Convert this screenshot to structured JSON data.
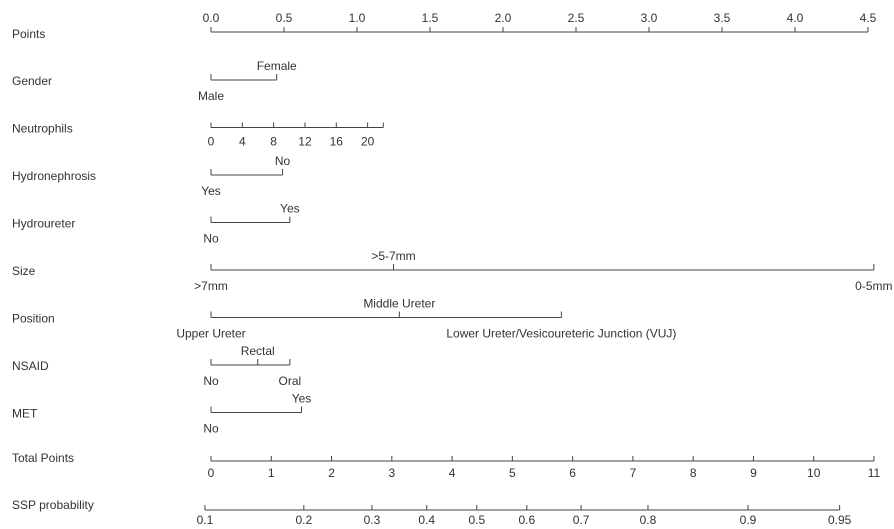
{
  "chart_data": {
    "type": "nomogram",
    "points_axis": {
      "name": "Points",
      "lim": [
        0,
        4.5
      ],
      "ticks": [
        {
          "value": 0,
          "label": "0.0"
        },
        0.5,
        {
          "value": 1,
          "label": "1.0"
        },
        1.5,
        {
          "value": 2,
          "label": "2.0"
        },
        2.5,
        {
          "value": 3,
          "label": "3.0"
        },
        3.5,
        {
          "value": 4,
          "label": "4.0"
        },
        4.5
      ]
    },
    "variables": [
      {
        "name": "Gender",
        "items": [
          {
            "label": "Male",
            "points": 0
          },
          {
            "label": "Female",
            "points": 0.45
          }
        ]
      },
      {
        "name": "Neutrophils",
        "lim": [
          0,
          22
        ],
        "points_lim": [
          0,
          1.18
        ],
        "ticks": [
          0,
          4,
          8,
          12,
          16,
          20
        ]
      },
      {
        "name": "Hydronephrosis",
        "items": [
          {
            "label": "Yes",
            "points": 0
          },
          {
            "label": "No",
            "points": 0.49
          }
        ]
      },
      {
        "name": "Hydroureter",
        "items": [
          {
            "label": "No",
            "points": 0
          },
          {
            "label": "Yes",
            "points": 0.54
          }
        ]
      },
      {
        "name": "Size",
        "items": [
          {
            "label": ">7mm",
            "points": 0
          },
          {
            "label": ">5-7mm",
            "points": 1.25
          },
          {
            "label": "0-5mm",
            "points": 4.54
          }
        ]
      },
      {
        "name": "Position",
        "items": [
          {
            "label": "Upper Ureter",
            "points": 0
          },
          {
            "label": "Middle Ureter",
            "points": 1.29
          },
          {
            "label": "Lower Ureter/Vesicoureteric Junction (VUJ)",
            "points": 2.4
          }
        ]
      },
      {
        "name": "NSAID",
        "items": [
          {
            "label": "No",
            "points": 0
          },
          {
            "label": "Rectal",
            "points": 0.32
          },
          {
            "label": "Oral",
            "points": 0.54
          }
        ]
      },
      {
        "name": "MET",
        "items": [
          {
            "label": "No",
            "points": 0
          },
          {
            "label": "Yes",
            "points": 0.62
          }
        ]
      }
    ],
    "total_axis": {
      "name": "Total Points",
      "lim": [
        0,
        11
      ],
      "ticks": [
        0,
        1,
        2,
        3,
        4,
        5,
        6,
        7,
        8,
        9,
        10,
        11
      ]
    },
    "probability_axis": {
      "name": "SSP probability",
      "ticks": [
        0.1,
        0.2,
        0.3,
        0.4,
        0.5,
        0.6,
        0.7,
        0.8,
        0.9,
        0.95
      ],
      "total_points": [
        -0.1,
        1.54,
        2.67,
        3.58,
        4.41,
        5.24,
        6.14,
        7.25,
        8.91,
        10.43
      ]
    }
  }
}
